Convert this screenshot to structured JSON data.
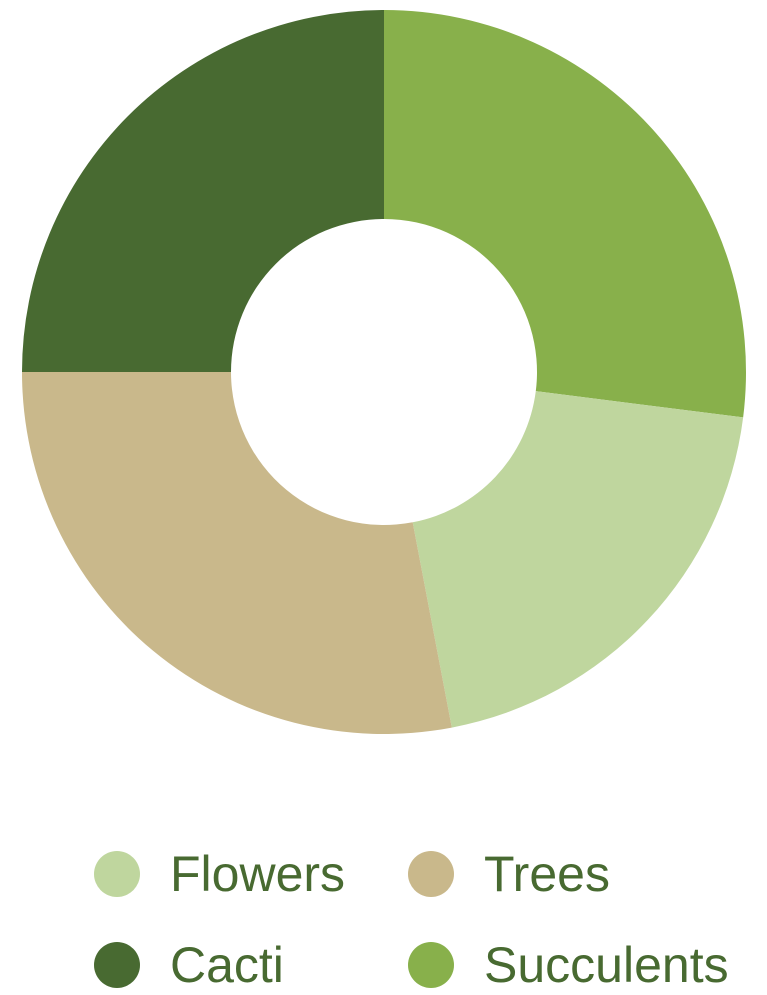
{
  "chart_data": {
    "type": "pie",
    "donut": true,
    "categories": [
      "Succulents",
      "Flowers",
      "Trees",
      "Cacti"
    ],
    "values": [
      27,
      20,
      28,
      25
    ],
    "colors": {
      "Flowers": "#bfd69e",
      "Trees": "#c9b88b",
      "Cacti": "#486a31",
      "Succulents": "#88b04b"
    },
    "legend": {
      "placement": "bottom",
      "items": [
        {
          "label": "Flowers",
          "color": "#bfd69e"
        },
        {
          "label": "Trees",
          "color": "#c9b88b"
        },
        {
          "label": "Cacti",
          "color": "#486a31"
        },
        {
          "label": "Succulents",
          "color": "#88b04b"
        }
      ]
    },
    "label_color": "#486a31"
  }
}
